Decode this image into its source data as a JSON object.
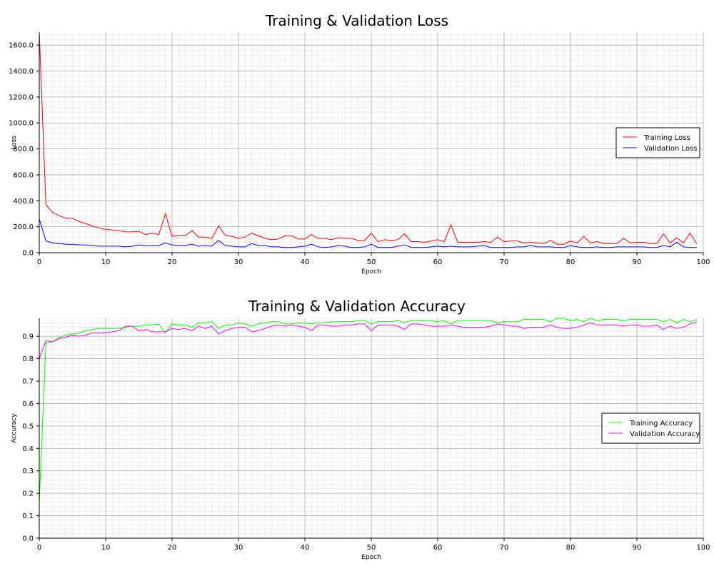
{
  "chart_data": [
    {
      "type": "line",
      "title": "Training & Validation Loss",
      "xlabel": "Epoch",
      "ylabel": "Loss",
      "xlim": [
        0,
        100
      ],
      "ylim": [
        0,
        1700
      ],
      "xticks": [
        0,
        10,
        20,
        30,
        40,
        50,
        60,
        70,
        80,
        90,
        100
      ],
      "yticks": [
        0,
        200,
        400,
        600,
        800,
        1000,
        1200,
        1400,
        1600
      ],
      "ytick_labels": [
        "0.0",
        "200.0",
        "400.0",
        "600.0",
        "800.0",
        "1000.0",
        "1200.0",
        "1400.0",
        "1600.0"
      ],
      "grid": true,
      "legend_position": "right",
      "series": [
        {
          "name": "Training Loss",
          "color": "#ff0000",
          "values": [
            1700,
            370,
            310,
            285,
            265,
            265,
            240,
            225,
            205,
            190,
            180,
            175,
            170,
            160,
            160,
            165,
            140,
            150,
            140,
            300,
            125,
            135,
            130,
            170,
            120,
            120,
            110,
            205,
            135,
            125,
            110,
            120,
            150,
            130,
            110,
            100,
            105,
            130,
            130,
            105,
            105,
            140,
            110,
            110,
            100,
            115,
            110,
            110,
            95,
            95,
            150,
            85,
            100,
            95,
            100,
            145,
            85,
            85,
            80,
            90,
            100,
            85,
            215,
            80,
            80,
            80,
            80,
            85,
            80,
            120,
            85,
            90,
            90,
            75,
            80,
            75,
            70,
            95,
            65,
            65,
            90,
            75,
            125,
            75,
            85,
            70,
            70,
            70,
            110,
            75,
            80,
            80,
            70,
            70,
            145,
            75,
            115,
            75,
            150,
            70
          ]
        },
        {
          "name": "Validation Loss",
          "color": "#0000ff",
          "values": [
            260,
            90,
            75,
            70,
            65,
            65,
            60,
            60,
            55,
            50,
            50,
            50,
            50,
            45,
            50,
            60,
            55,
            55,
            55,
            75,
            60,
            55,
            55,
            65,
            50,
            55,
            50,
            95,
            55,
            50,
            45,
            45,
            70,
            55,
            55,
            45,
            45,
            40,
            40,
            45,
            50,
            65,
            45,
            40,
            45,
            55,
            50,
            40,
            40,
            45,
            65,
            40,
            40,
            40,
            50,
            60,
            40,
            40,
            40,
            45,
            50,
            45,
            50,
            45,
            45,
            45,
            50,
            55,
            40,
            40,
            40,
            40,
            45,
            45,
            55,
            45,
            45,
            45,
            40,
            40,
            55,
            45,
            40,
            40,
            45,
            40,
            40,
            45,
            45,
            45,
            45,
            45,
            40,
            40,
            55,
            45,
            80,
            45,
            40,
            40
          ]
        }
      ]
    },
    {
      "type": "line",
      "title": "Training & Validation Accuracy",
      "xlabel": "Epoch",
      "ylabel": "Accuracy",
      "xlim": [
        0,
        100
      ],
      "ylim": [
        0,
        0.98
      ],
      "xticks": [
        0,
        10,
        20,
        30,
        40,
        50,
        60,
        70,
        80,
        90,
        100
      ],
      "yticks": [
        0,
        0.1,
        0.2,
        0.3,
        0.4,
        0.5,
        0.6,
        0.7,
        0.8,
        0.9
      ],
      "ytick_labels": [
        "0.0",
        "0.1",
        "0.2",
        "0.3",
        "0.4",
        "0.5",
        "0.6",
        "0.7",
        "0.8",
        "0.9"
      ],
      "grid": true,
      "legend_position": "right",
      "series": [
        {
          "name": "Training Accuracy",
          "color": "#00ff00",
          "values": [
            0.16,
            0.87,
            0.875,
            0.895,
            0.905,
            0.91,
            0.915,
            0.925,
            0.93,
            0.935,
            0.935,
            0.935,
            0.935,
            0.94,
            0.945,
            0.945,
            0.95,
            0.95,
            0.955,
            0.915,
            0.955,
            0.95,
            0.95,
            0.94,
            0.96,
            0.96,
            0.965,
            0.935,
            0.95,
            0.95,
            0.96,
            0.955,
            0.945,
            0.955,
            0.96,
            0.965,
            0.965,
            0.955,
            0.955,
            0.96,
            0.96,
            0.955,
            0.96,
            0.96,
            0.965,
            0.965,
            0.965,
            0.965,
            0.97,
            0.97,
            0.955,
            0.965,
            0.965,
            0.965,
            0.97,
            0.96,
            0.97,
            0.97,
            0.97,
            0.97,
            0.965,
            0.97,
            0.955,
            0.97,
            0.97,
            0.97,
            0.97,
            0.97,
            0.97,
            0.96,
            0.965,
            0.965,
            0.965,
            0.975,
            0.975,
            0.975,
            0.975,
            0.965,
            0.98,
            0.98,
            0.97,
            0.975,
            0.965,
            0.98,
            0.97,
            0.975,
            0.975,
            0.975,
            0.97,
            0.975,
            0.975,
            0.975,
            0.975,
            0.975,
            0.965,
            0.975,
            0.96,
            0.975,
            0.965,
            0.975
          ]
        },
        {
          "name": "Validation Accuracy",
          "color": "#ff00ff",
          "values": [
            0.8,
            0.88,
            0.875,
            0.89,
            0.895,
            0.905,
            0.9,
            0.905,
            0.915,
            0.915,
            0.915,
            0.92,
            0.925,
            0.945,
            0.945,
            0.925,
            0.93,
            0.92,
            0.92,
            0.92,
            0.935,
            0.93,
            0.935,
            0.925,
            0.945,
            0.935,
            0.945,
            0.91,
            0.925,
            0.935,
            0.94,
            0.94,
            0.92,
            0.925,
            0.935,
            0.945,
            0.95,
            0.945,
            0.95,
            0.945,
            0.94,
            0.925,
            0.95,
            0.95,
            0.945,
            0.945,
            0.95,
            0.95,
            0.955,
            0.955,
            0.925,
            0.95,
            0.95,
            0.95,
            0.945,
            0.93,
            0.955,
            0.955,
            0.95,
            0.945,
            0.945,
            0.945,
            0.95,
            0.945,
            0.94,
            0.94,
            0.94,
            0.94,
            0.945,
            0.955,
            0.95,
            0.945,
            0.945,
            0.935,
            0.94,
            0.94,
            0.94,
            0.95,
            0.94,
            0.935,
            0.935,
            0.94,
            0.95,
            0.96,
            0.95,
            0.95,
            0.95,
            0.95,
            0.945,
            0.95,
            0.95,
            0.945,
            0.945,
            0.95,
            0.93,
            0.945,
            0.935,
            0.94,
            0.955,
            0.965
          ]
        }
      ]
    }
  ]
}
